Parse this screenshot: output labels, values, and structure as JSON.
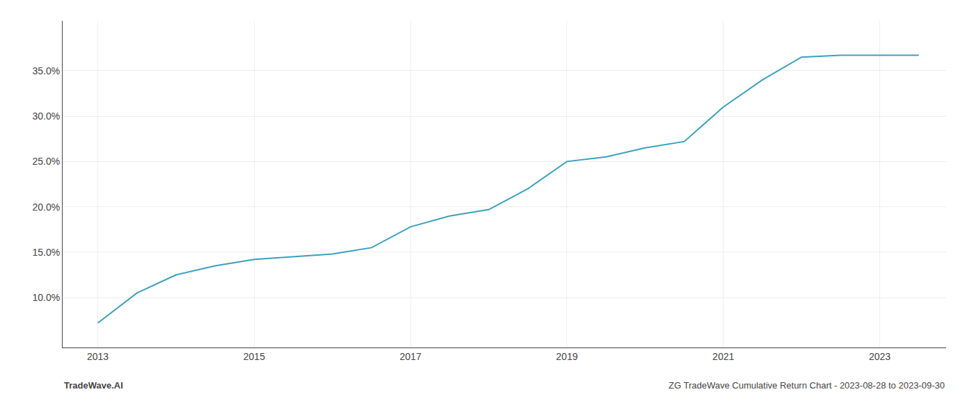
{
  "chart_data": {
    "type": "line",
    "x": [
      2013.0,
      2013.5,
      2014.0,
      2014.5,
      2015.0,
      2015.5,
      2016.0,
      2016.5,
      2017.0,
      2017.5,
      2018.0,
      2018.5,
      2019.0,
      2019.5,
      2020.0,
      2020.5,
      2021.0,
      2021.5,
      2022.0,
      2022.5,
      2023.0,
      2023.5
    ],
    "values": [
      7.2,
      10.5,
      12.5,
      13.5,
      14.2,
      14.5,
      14.8,
      15.5,
      17.8,
      19.0,
      19.7,
      22.0,
      25.0,
      25.5,
      26.5,
      27.2,
      31.0,
      34.0,
      36.5,
      36.7,
      36.7,
      36.7
    ],
    "color": "#3a9fc0",
    "xlim": [
      2012.55,
      2023.85
    ],
    "ylim": [
      4.5,
      40.5
    ],
    "xticks": [
      2013,
      2015,
      2017,
      2019,
      2021,
      2023
    ],
    "yticks": [
      {
        "value": 10.0,
        "label": "10.0%"
      },
      {
        "value": 15.0,
        "label": "15.0%"
      },
      {
        "value": 20.0,
        "label": "20.0%"
      },
      {
        "value": 25.0,
        "label": "25.0%"
      },
      {
        "value": 30.0,
        "label": "30.0%"
      },
      {
        "value": 35.0,
        "label": "35.0%"
      }
    ],
    "grid": true,
    "annotations": [
      "TradeWave.AI",
      "ZG TradeWave Cumulative Return Chart - 2023-08-28 to 2023-09-30"
    ]
  }
}
